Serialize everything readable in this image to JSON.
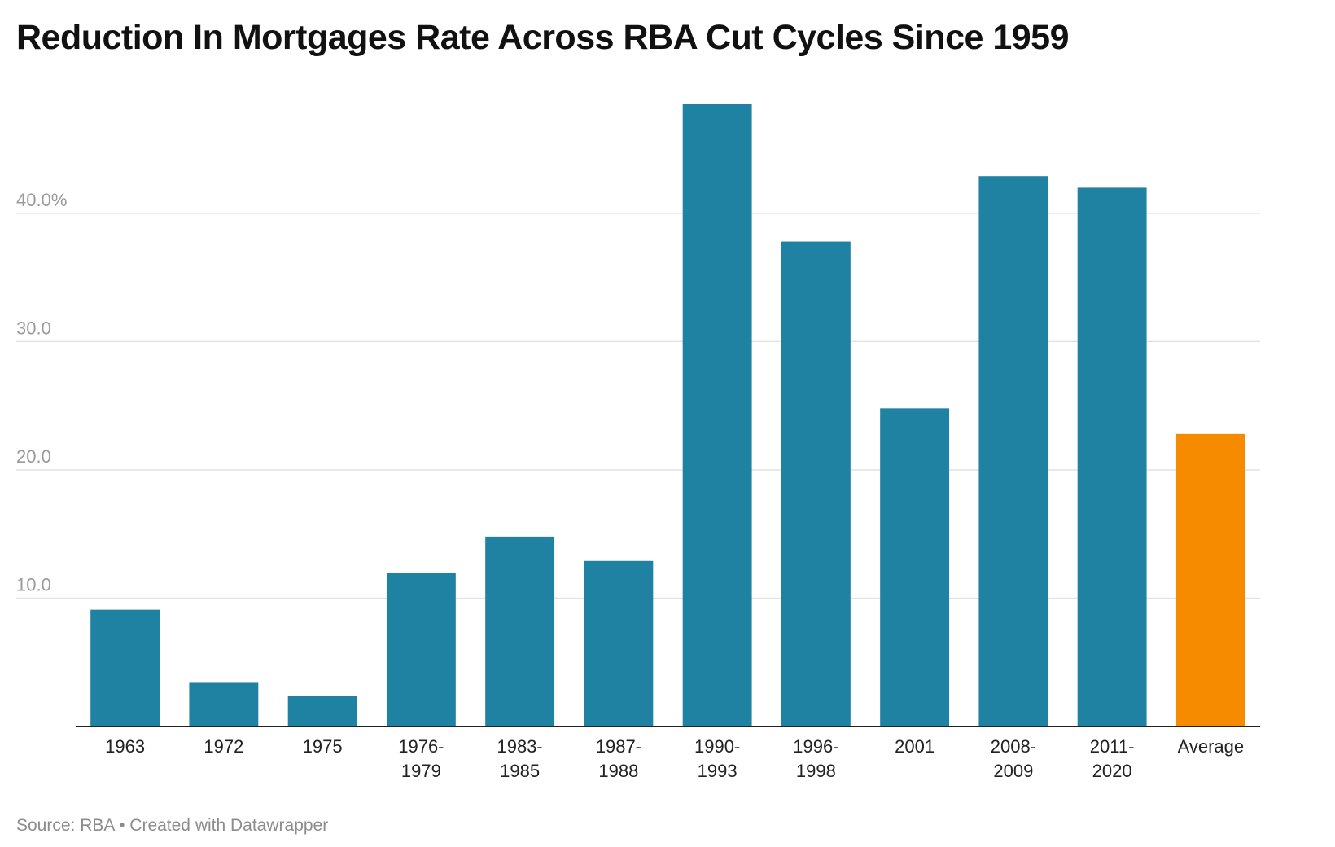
{
  "chart_data": {
    "type": "bar",
    "title": "Reduction In Mortgages Rate Across RBA Cut Cycles Since 1959",
    "xlabel": "",
    "ylabel": "",
    "categories": [
      [
        "1963"
      ],
      [
        "1972"
      ],
      [
        "1975"
      ],
      [
        "1976-",
        "1979"
      ],
      [
        "1983-",
        "1985"
      ],
      [
        "1987-",
        "1988"
      ],
      [
        "1990-",
        "1993"
      ],
      [
        "1996-",
        "1998"
      ],
      [
        "2001"
      ],
      [
        "2008-",
        "2009"
      ],
      [
        "2011-",
        "2020"
      ],
      [
        "Average"
      ]
    ],
    "values": [
      9.1,
      3.4,
      2.4,
      12.0,
      14.8,
      12.9,
      48.5,
      37.8,
      24.8,
      42.9,
      42.0,
      22.8
    ],
    "highlight_index": 11,
    "ylim": [
      0,
      48.5
    ],
    "yticks": [
      {
        "value": 10,
        "label": "10.0"
      },
      {
        "value": 20,
        "label": "20.0"
      },
      {
        "value": 30,
        "label": "30.0"
      },
      {
        "value": 40,
        "label": "40.0%"
      }
    ],
    "grid": true,
    "colors": {
      "bar": "#1f82a2",
      "highlight": "#f78b00",
      "grid": "#e2e2e2",
      "baseline": "#222222"
    }
  },
  "footer": {
    "source_label": "Source: RBA",
    "separator": "•",
    "credit": "Created with Datawrapper"
  }
}
